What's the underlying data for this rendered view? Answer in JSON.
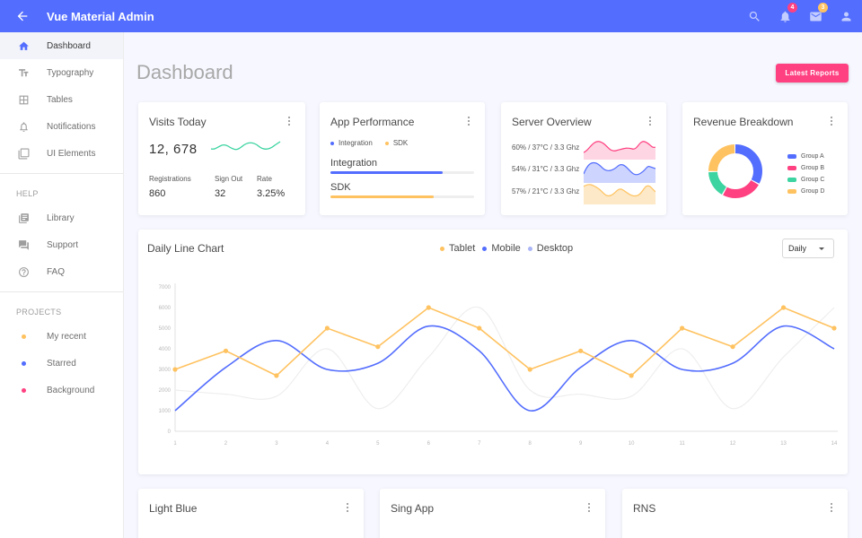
{
  "header": {
    "title": "Vue Material Admin",
    "notifications_count": "4",
    "messages_count": "3"
  },
  "sidebar": {
    "main": [
      {
        "label": "Dashboard",
        "icon": "home-icon",
        "active": true
      },
      {
        "label": "Typography",
        "icon": "text-icon"
      },
      {
        "label": "Tables",
        "icon": "grid-icon"
      },
      {
        "label": "Notifications",
        "icon": "bell-icon"
      },
      {
        "label": "UI Elements",
        "icon": "layers-icon"
      }
    ],
    "help_title": "HELP",
    "help": [
      {
        "label": "Library",
        "icon": "library-icon"
      },
      {
        "label": "Support",
        "icon": "forum-icon"
      },
      {
        "label": "FAQ",
        "icon": "help-circle-icon"
      }
    ],
    "projects_title": "PROJECTS",
    "projects": [
      {
        "label": "My recent",
        "color": "#ffc260"
      },
      {
        "label": "Starred",
        "color": "#536dfe"
      },
      {
        "label": "Background",
        "color": "#ff4081"
      }
    ]
  },
  "page": {
    "title": "Dashboard",
    "latest_reports": "Latest Reports"
  },
  "visits": {
    "title": "Visits Today",
    "value": "12, 678",
    "registrations_label": "Registrations",
    "registrations": "860",
    "signout_label": "Sign Out",
    "signout": "32",
    "rate_label": "Rate",
    "rate": "3.25%"
  },
  "performance": {
    "title": "App Performance",
    "legend": [
      {
        "label": "Integration",
        "color": "#536dfe"
      },
      {
        "label": "SDK",
        "color": "#ffc260"
      }
    ],
    "bars": [
      {
        "label": "Integration",
        "value": 0.78,
        "color": "#536dfe"
      },
      {
        "label": "SDK",
        "value": 0.72,
        "color": "#ffc260"
      }
    ]
  },
  "server": {
    "title": "Server Overview",
    "rows": [
      {
        "label": "60% / 37°C / 3.3 Ghz",
        "color": "#ff4081",
        "fill": "#fdd5e3"
      },
      {
        "label": "54% / 31°C / 3.3 Ghz",
        "color": "#536dfe",
        "fill": "#cdd4fd"
      },
      {
        "label": "57% / 21°C / 3.3 Ghz",
        "color": "#ffc260",
        "fill": "#fde9c7"
      }
    ]
  },
  "revenue": {
    "title": "Revenue Breakdown",
    "groups": [
      {
        "label": "Group A",
        "value": 400,
        "color": "#536dfe"
      },
      {
        "label": "Group B",
        "value": 300,
        "color": "#ff4081"
      },
      {
        "label": "Group C",
        "value": 200,
        "color": "#3cd4a0"
      },
      {
        "label": "Group D",
        "value": 300,
        "color": "#ffc260"
      }
    ]
  },
  "daily": {
    "title": "Daily Line Chart",
    "select_value": "Daily",
    "legend": [
      {
        "label": "Tablet",
        "color": "#ffc260"
      },
      {
        "label": "Mobile",
        "color": "#536dfe"
      },
      {
        "label": "Desktop",
        "color": "#aab5f7"
      }
    ]
  },
  "chart_data": {
    "type": "line",
    "x": [
      1,
      2,
      3,
      4,
      5,
      6,
      7,
      8,
      9,
      10,
      11,
      12,
      13,
      14
    ],
    "ylim": [
      0,
      7000
    ],
    "yticks": [
      0,
      1000,
      2000,
      3000,
      4000,
      5000,
      6000,
      7000
    ],
    "series": [
      {
        "name": "Tablet",
        "color": "#ffc260",
        "values": [
          3000,
          3900,
          2700,
          5000,
          4100,
          6000,
          5000,
          3000,
          3900,
          2700,
          5000,
          4100,
          6000,
          5000
        ]
      },
      {
        "name": "Mobile",
        "color": "#536dfe",
        "values": [
          1000,
          3100,
          4400,
          3000,
          3300,
          5100,
          3900,
          1000,
          3100,
          4400,
          3000,
          3300,
          5100,
          4000
        ]
      },
      {
        "name": "Desktop",
        "color": "#eeeeee",
        "values": [
          2000,
          1800,
          1700,
          4000,
          1100,
          3600,
          6000,
          2000,
          1800,
          1700,
          4000,
          1100,
          3600,
          6000
        ]
      }
    ]
  },
  "bottom_cards": [
    {
      "title": "Light Blue"
    },
    {
      "title": "Sing App"
    },
    {
      "title": "RNS"
    }
  ]
}
